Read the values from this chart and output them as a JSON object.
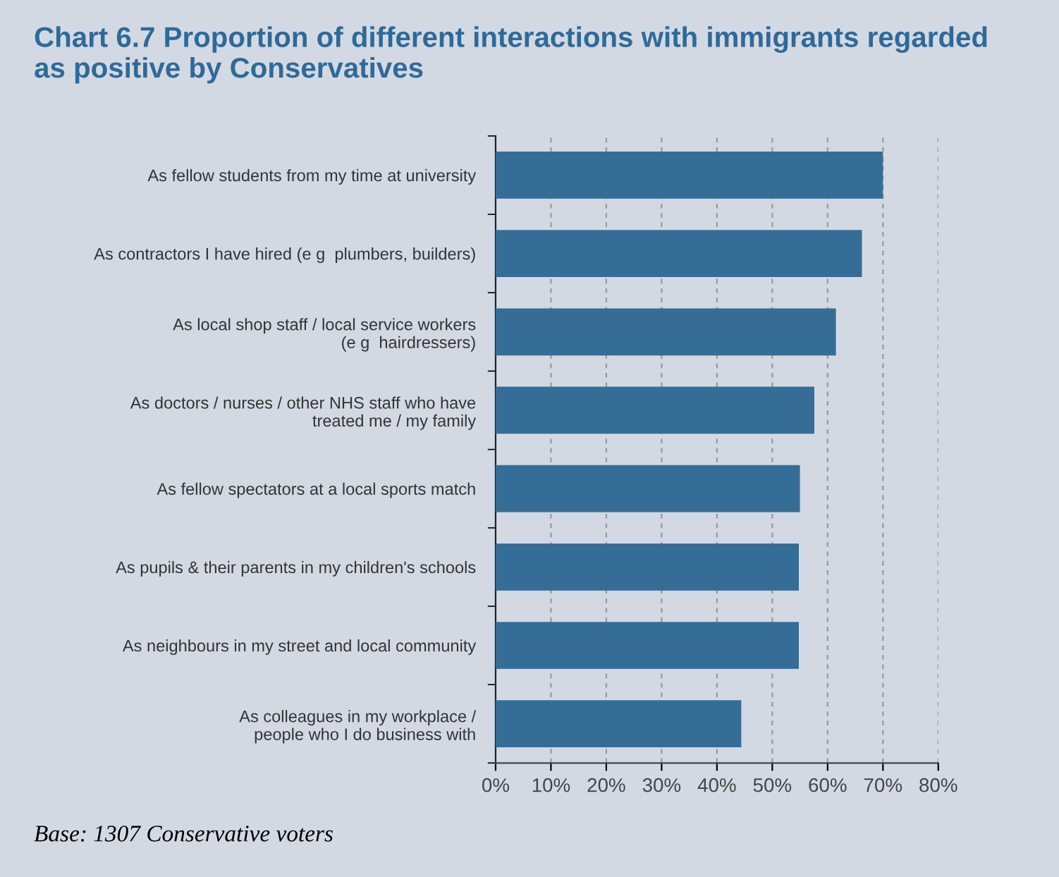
{
  "chart_data": {
    "type": "bar",
    "orientation": "horizontal",
    "title": "Chart 6.7 Proportion of different interactions with immigrants regarded\nas positive by Conservatives",
    "categories": [
      "As fellow students from my time at university",
      "As contractors I have hired (e g  plumbers, builders)",
      "As local shop staff / local service workers\n(e g  hairdressers)",
      "As doctors / nurses / other NHS staff who have\ntreated me / my family",
      "As fellow spectators at a local sports match",
      "As pupils & their parents in my children's schools",
      "As neighbours in my street and local community",
      "As colleagues in my workplace /\npeople who I do business with"
    ],
    "values": [
      70,
      66.2,
      61.5,
      57.6,
      55,
      54.8,
      54.8,
      44.4
    ],
    "color": "#356d97",
    "xlim": [
      0,
      80
    ],
    "xticks": [
      {
        "value": 0,
        "label": "0%"
      },
      {
        "value": 10,
        "label": "10%"
      },
      {
        "value": 20,
        "label": "20%"
      },
      {
        "value": 30,
        "label": "30%"
      },
      {
        "value": 40,
        "label": "40%"
      },
      {
        "value": 50,
        "label": "50%"
      },
      {
        "value": 60,
        "label": "60%"
      },
      {
        "value": 70,
        "label": "70%"
      },
      {
        "value": 80,
        "label": "80%"
      }
    ],
    "grid": "x",
    "annotations": [
      "Base: 1307 Conservative voters"
    ]
  }
}
